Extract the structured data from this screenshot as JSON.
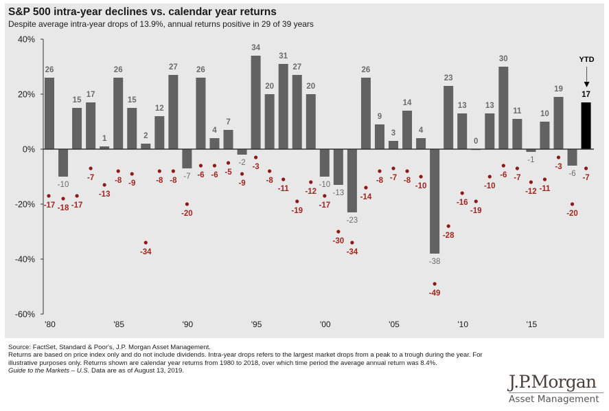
{
  "header": {
    "title": "S&P 500 intra-year declines vs. calendar year returns",
    "subtitle": "Despite average intra-year drops of 13.9%, annual returns positive in 29 of 39 years"
  },
  "chart_data": {
    "type": "bar",
    "title": "S&P 500 intra-year declines vs. calendar year returns",
    "subtitle": "Despite average intra-year drops of 13.9%, annual returns positive in 29 of 39 years",
    "xlabel": "",
    "ylabel": "",
    "ylim": [
      -60,
      40
    ],
    "yticks": [
      40,
      20,
      0,
      -20,
      -40,
      -60
    ],
    "ytick_labels": [
      "40%",
      "20%",
      "0%",
      "-20%",
      "-40%",
      "-60%"
    ],
    "x": [
      1980,
      1981,
      1982,
      1983,
      1984,
      1985,
      1986,
      1987,
      1988,
      1989,
      1990,
      1991,
      1992,
      1993,
      1994,
      1995,
      1996,
      1997,
      1998,
      1999,
      2000,
      2001,
      2002,
      2003,
      2004,
      2005,
      2006,
      2007,
      2008,
      2009,
      2010,
      2011,
      2012,
      2013,
      2014,
      2015,
      2016,
      2017,
      2018,
      2019
    ],
    "xtick_labels": [
      {
        "year": 1980,
        "label": "'80"
      },
      {
        "year": 1985,
        "label": "'85"
      },
      {
        "year": 1990,
        "label": "'90"
      },
      {
        "year": 1995,
        "label": "'95"
      },
      {
        "year": 2000,
        "label": "'00"
      },
      {
        "year": 2005,
        "label": "'05"
      },
      {
        "year": 2010,
        "label": "'10"
      },
      {
        "year": 2015,
        "label": "'15"
      }
    ],
    "grid": false,
    "series": [
      {
        "name": "Calendar year return",
        "type": "bar",
        "color": "#626262",
        "highlight_color": "#000000",
        "values": [
          26,
          -10,
          15,
          17,
          1,
          26,
          15,
          2,
          12,
          27,
          -7,
          26,
          4,
          7,
          -2,
          34,
          20,
          31,
          27,
          20,
          -10,
          -13,
          -23,
          26,
          9,
          3,
          14,
          4,
          -38,
          23,
          13,
          0,
          13,
          30,
          11,
          -1,
          10,
          19,
          -6,
          17
        ]
      },
      {
        "name": "Intra-year decline",
        "type": "scatter",
        "color": "#8b1a1a",
        "values": [
          -17,
          -18,
          -17,
          -7,
          -13,
          -8,
          -9,
          -34,
          -8,
          -8,
          -20,
          -6,
          -6,
          -5,
          -9,
          -3,
          -8,
          -11,
          -19,
          -12,
          -17,
          -30,
          -34,
          -14,
          -8,
          -7,
          -8,
          -10,
          -49,
          -28,
          -16,
          -19,
          -10,
          -6,
          -7,
          -12,
          -11,
          -3,
          -20,
          -7
        ]
      }
    ],
    "annotations": [
      {
        "text": "YTD",
        "target_year": 2019,
        "arrow": "down"
      }
    ]
  },
  "footer": {
    "source": "Source: FactSet, Standard & Poor's, J.P. Morgan Asset Management.",
    "note": "Returns are based on price index only and do not include dividends. Intra-year drops refers to the largest market drops from a peak to a trough during the year. For illustrative purposes only. Returns shown are calendar year returns from 1980 to 2018, over which time period the average annual return was 8.4%.",
    "guide_italic": "Guide to the Markets – U.S.",
    "guide_rest": " Data are as of August 13, 2019."
  },
  "logo": {
    "main": "J.P.Morgan",
    "sub": "Asset Management"
  }
}
